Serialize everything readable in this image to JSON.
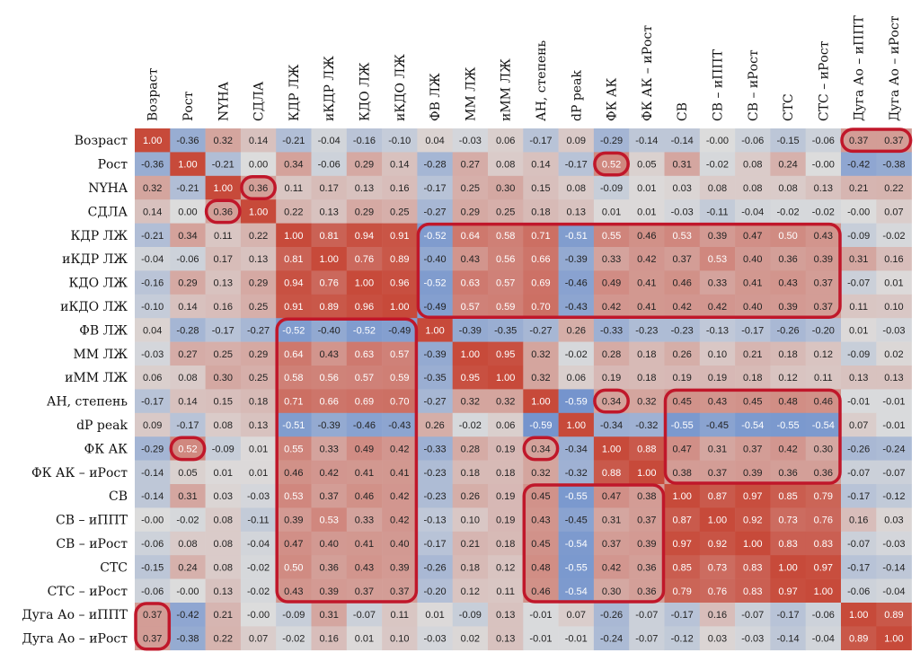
{
  "chart_data": {
    "type": "heatmap",
    "title": "",
    "labels": [
      "Возраст",
      "Рост",
      "NYHA",
      "СДЛА",
      "КДР ЛЖ",
      "иКДР ЛЖ",
      "КДО ЛЖ",
      "иКДО ЛЖ",
      "ФВ ЛЖ",
      "ММ ЛЖ",
      "иММ ЛЖ",
      "АН, степень",
      "dP peak",
      "ФК АК",
      "ФК АК – иРост",
      "СВ",
      "СВ – иППТ",
      "СВ – иРост",
      "СТС",
      "СТС – иРост",
      "Дуга Ао – иППТ",
      "Дуга Ао – иРост"
    ],
    "value_range": [
      -1,
      1
    ],
    "colors": {
      "negative": "#3b6cc4",
      "neutral": "#dcdcdc",
      "positive": "#c74a3a",
      "highlight": "#c0172a"
    },
    "matrix": [
      [
        "1.00",
        "-0.36",
        "0.32",
        "0.14",
        "-0.21",
        "-0.04",
        "-0.16",
        "-0.10",
        "0.04",
        "-0.03",
        "0.06",
        "-0.17",
        "0.09",
        "-0.29",
        "-0.14",
        "-0.14",
        "-0.00",
        "-0.06",
        "-0.15",
        "-0.06",
        "0.37",
        "0.37"
      ],
      [
        "-0.36",
        "1.00",
        "-0.21",
        "0.00",
        "0.34",
        "-0.06",
        "0.29",
        "0.14",
        "-0.28",
        "0.27",
        "0.08",
        "0.14",
        "-0.17",
        "0.52",
        "0.05",
        "0.31",
        "-0.02",
        "0.08",
        "0.24",
        "-0.00",
        "-0.42",
        "-0.38"
      ],
      [
        "0.32",
        "-0.21",
        "1.00",
        "0.36",
        "0.11",
        "0.17",
        "0.13",
        "0.16",
        "-0.17",
        "0.25",
        "0.30",
        "0.15",
        "0.08",
        "-0.09",
        "0.01",
        "0.03",
        "0.08",
        "0.08",
        "0.08",
        "0.13",
        "0.21",
        "0.22"
      ],
      [
        "0.14",
        "0.00",
        "0.36",
        "1.00",
        "0.22",
        "0.13",
        "0.29",
        "0.25",
        "-0.27",
        "0.29",
        "0.25",
        "0.18",
        "0.13",
        "0.01",
        "0.01",
        "-0.03",
        "-0.11",
        "-0.04",
        "-0.02",
        "-0.02",
        "-0.00",
        "0.07"
      ],
      [
        "-0.21",
        "0.34",
        "0.11",
        "0.22",
        "1.00",
        "0.81",
        "0.94",
        "0.91",
        "-0.52",
        "0.64",
        "0.58",
        "0.71",
        "-0.51",
        "0.55",
        "0.46",
        "0.53",
        "0.39",
        "0.47",
        "0.50",
        "0.43",
        "-0.09",
        "-0.02"
      ],
      [
        "-0.04",
        "-0.06",
        "0.17",
        "0.13",
        "0.81",
        "1.00",
        "0.76",
        "0.89",
        "-0.40",
        "0.43",
        "0.56",
        "0.66",
        "-0.39",
        "0.33",
        "0.42",
        "0.37",
        "0.53",
        "0.40",
        "0.36",
        "0.39",
        "0.31",
        "0.16"
      ],
      [
        "-0.16",
        "0.29",
        "0.13",
        "0.29",
        "0.94",
        "0.76",
        "1.00",
        "0.96",
        "-0.52",
        "0.63",
        "0.57",
        "0.69",
        "-0.46",
        "0.49",
        "0.41",
        "0.46",
        "0.33",
        "0.41",
        "0.43",
        "0.37",
        "-0.07",
        "0.01"
      ],
      [
        "-0.10",
        "0.14",
        "0.16",
        "0.25",
        "0.91",
        "0.89",
        "0.96",
        "1.00",
        "-0.49",
        "0.57",
        "0.59",
        "0.70",
        "-0.43",
        "0.42",
        "0.41",
        "0.42",
        "0.42",
        "0.40",
        "0.39",
        "0.37",
        "0.11",
        "0.10"
      ],
      [
        "0.04",
        "-0.28",
        "-0.17",
        "-0.27",
        "-0.52",
        "-0.40",
        "-0.52",
        "-0.49",
        "1.00",
        "-0.39",
        "-0.35",
        "-0.27",
        "0.26",
        "-0.33",
        "-0.23",
        "-0.23",
        "-0.13",
        "-0.17",
        "-0.26",
        "-0.20",
        "0.01",
        "-0.03"
      ],
      [
        "-0.03",
        "0.27",
        "0.25",
        "0.29",
        "0.64",
        "0.43",
        "0.63",
        "0.57",
        "-0.39",
        "1.00",
        "0.95",
        "0.32",
        "-0.02",
        "0.28",
        "0.18",
        "0.26",
        "0.10",
        "0.21",
        "0.18",
        "0.12",
        "-0.09",
        "0.02"
      ],
      [
        "0.06",
        "0.08",
        "0.30",
        "0.25",
        "0.58",
        "0.56",
        "0.57",
        "0.59",
        "-0.35",
        "0.95",
        "1.00",
        "0.32",
        "0.06",
        "0.19",
        "0.18",
        "0.19",
        "0.19",
        "0.18",
        "0.12",
        "0.11",
        "0.13",
        "0.13"
      ],
      [
        "-0.17",
        "0.14",
        "0.15",
        "0.18",
        "0.71",
        "0.66",
        "0.69",
        "0.70",
        "-0.27",
        "0.32",
        "0.32",
        "1.00",
        "-0.59",
        "0.34",
        "0.32",
        "0.45",
        "0.43",
        "0.45",
        "0.48",
        "0.46",
        "-0.01",
        "-0.01"
      ],
      [
        "0.09",
        "-0.17",
        "0.08",
        "0.13",
        "-0.51",
        "-0.39",
        "-0.46",
        "-0.43",
        "0.26",
        "-0.02",
        "0.06",
        "-0.59",
        "1.00",
        "-0.34",
        "-0.32",
        "-0.55",
        "-0.45",
        "-0.54",
        "-0.55",
        "-0.54",
        "0.07",
        "-0.01"
      ],
      [
        "-0.29",
        "0.52",
        "-0.09",
        "0.01",
        "0.55",
        "0.33",
        "0.49",
        "0.42",
        "-0.33",
        "0.28",
        "0.19",
        "0.34",
        "-0.34",
        "1.00",
        "0.88",
        "0.47",
        "0.31",
        "0.37",
        "0.42",
        "0.30",
        "-0.26",
        "-0.24"
      ],
      [
        "-0.14",
        "0.05",
        "0.01",
        "0.01",
        "0.46",
        "0.42",
        "0.41",
        "0.41",
        "-0.23",
        "0.18",
        "0.18",
        "0.32",
        "-0.32",
        "0.88",
        "1.00",
        "0.38",
        "0.37",
        "0.39",
        "0.36",
        "0.36",
        "-0.07",
        "-0.07"
      ],
      [
        "-0.14",
        "0.31",
        "0.03",
        "-0.03",
        "0.53",
        "0.37",
        "0.46",
        "0.42",
        "-0.23",
        "0.26",
        "0.19",
        "0.45",
        "-0.55",
        "0.47",
        "0.38",
        "1.00",
        "0.87",
        "0.97",
        "0.85",
        "0.79",
        "-0.17",
        "-0.12"
      ],
      [
        "-0.00",
        "-0.02",
        "0.08",
        "-0.11",
        "0.39",
        "0.53",
        "0.33",
        "0.42",
        "-0.13",
        "0.10",
        "0.19",
        "0.43",
        "-0.45",
        "0.31",
        "0.37",
        "0.87",
        "1.00",
        "0.92",
        "0.73",
        "0.76",
        "0.16",
        "0.03"
      ],
      [
        "-0.06",
        "0.08",
        "0.08",
        "-0.04",
        "0.47",
        "0.40",
        "0.41",
        "0.40",
        "-0.17",
        "0.21",
        "0.18",
        "0.45",
        "-0.54",
        "0.37",
        "0.39",
        "0.97",
        "0.92",
        "1.00",
        "0.83",
        "0.83",
        "-0.07",
        "-0.03"
      ],
      [
        "-0.15",
        "0.24",
        "0.08",
        "-0.02",
        "0.50",
        "0.36",
        "0.43",
        "0.39",
        "-0.26",
        "0.18",
        "0.12",
        "0.48",
        "-0.55",
        "0.42",
        "0.36",
        "0.85",
        "0.73",
        "0.83",
        "1.00",
        "0.97",
        "-0.17",
        "-0.14"
      ],
      [
        "-0.06",
        "-0.00",
        "0.13",
        "-0.02",
        "0.43",
        "0.39",
        "0.37",
        "0.37",
        "-0.20",
        "0.12",
        "0.11",
        "0.46",
        "-0.54",
        "0.30",
        "0.36",
        "0.79",
        "0.76",
        "0.83",
        "0.97",
        "1.00",
        "-0.06",
        "-0.04"
      ],
      [
        "0.37",
        "-0.42",
        "0.21",
        "-0.00",
        "-0.09",
        "0.31",
        "-0.07",
        "0.11",
        "0.01",
        "-0.09",
        "0.13",
        "-0.01",
        "0.07",
        "-0.26",
        "-0.07",
        "-0.17",
        "0.16",
        "-0.07",
        "-0.17",
        "-0.06",
        "1.00",
        "0.89"
      ],
      [
        "0.37",
        "-0.38",
        "0.22",
        "0.07",
        "-0.02",
        "0.16",
        "0.01",
        "0.10",
        "-0.03",
        "0.02",
        "0.13",
        "-0.01",
        "-0.01",
        "-0.24",
        "-0.07",
        "-0.12",
        "0.03",
        "-0.03",
        "-0.14",
        "-0.04",
        "0.89",
        "1.00"
      ]
    ],
    "highlight_boxes": [
      {
        "row_start": 0,
        "row_end": 0,
        "col_start": 20,
        "col_end": 21
      },
      {
        "row_start": 1,
        "row_end": 1,
        "col_start": 13,
        "col_end": 13
      },
      {
        "row_start": 2,
        "row_end": 2,
        "col_start": 3,
        "col_end": 3
      },
      {
        "row_start": 3,
        "row_end": 3,
        "col_start": 2,
        "col_end": 2
      },
      {
        "row_start": 4,
        "row_end": 7,
        "col_start": 8,
        "col_end": 19
      },
      {
        "row_start": 8,
        "row_end": 19,
        "col_start": 4,
        "col_end": 7
      },
      {
        "row_start": 11,
        "row_end": 11,
        "col_start": 13,
        "col_end": 13
      },
      {
        "row_start": 11,
        "row_end": 14,
        "col_start": 15,
        "col_end": 19
      },
      {
        "row_start": 13,
        "row_end": 13,
        "col_start": 1,
        "col_end": 1
      },
      {
        "row_start": 13,
        "row_end": 13,
        "col_start": 11,
        "col_end": 11
      },
      {
        "row_start": 15,
        "row_end": 19,
        "col_start": 11,
        "col_end": 14
      },
      {
        "row_start": 20,
        "row_end": 21,
        "col_start": 0,
        "col_end": 0
      }
    ]
  }
}
